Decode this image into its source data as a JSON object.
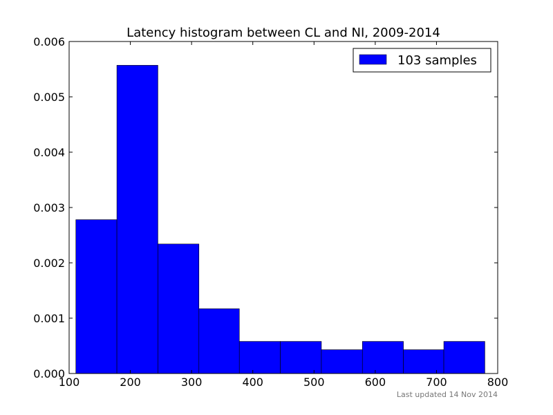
{
  "chart_data": {
    "type": "bar",
    "title": "Latency histogram between CL and NI, 2009-2014",
    "xlabel": "",
    "ylabel": "",
    "xlim": [
      100,
      800
    ],
    "ylim": [
      0,
      0.006
    ],
    "x_ticks": [
      100,
      200,
      300,
      400,
      500,
      600,
      700,
      800
    ],
    "y_ticks": [
      0.0,
      0.001,
      0.002,
      0.003,
      0.004,
      0.005,
      0.006
    ],
    "y_tick_labels": [
      "0.000",
      "0.001",
      "0.002",
      "0.003",
      "0.004",
      "0.005",
      "0.006"
    ],
    "bins": [
      {
        "x0": 111,
        "x1": 178,
        "value": 0.00278
      },
      {
        "x0": 178,
        "x1": 245,
        "value": 0.00557
      },
      {
        "x0": 245,
        "x1": 312,
        "value": 0.00234
      },
      {
        "x0": 312,
        "x1": 378,
        "value": 0.00117
      },
      {
        "x0": 378,
        "x1": 445,
        "value": 0.00058
      },
      {
        "x0": 445,
        "x1": 512,
        "value": 0.00058
      },
      {
        "x0": 512,
        "x1": 579,
        "value": 0.00043
      },
      {
        "x0": 579,
        "x1": 646,
        "value": 0.00058
      },
      {
        "x0": 646,
        "x1": 712,
        "value": 0.00043
      },
      {
        "x0": 712,
        "x1": 779,
        "value": 0.00058
      }
    ],
    "series": [
      {
        "name": "103 samples",
        "color": "#0000ff"
      }
    ],
    "legend_position": "top-right",
    "grid": false,
    "footnote": "Last updated 14 Nov 2014"
  }
}
